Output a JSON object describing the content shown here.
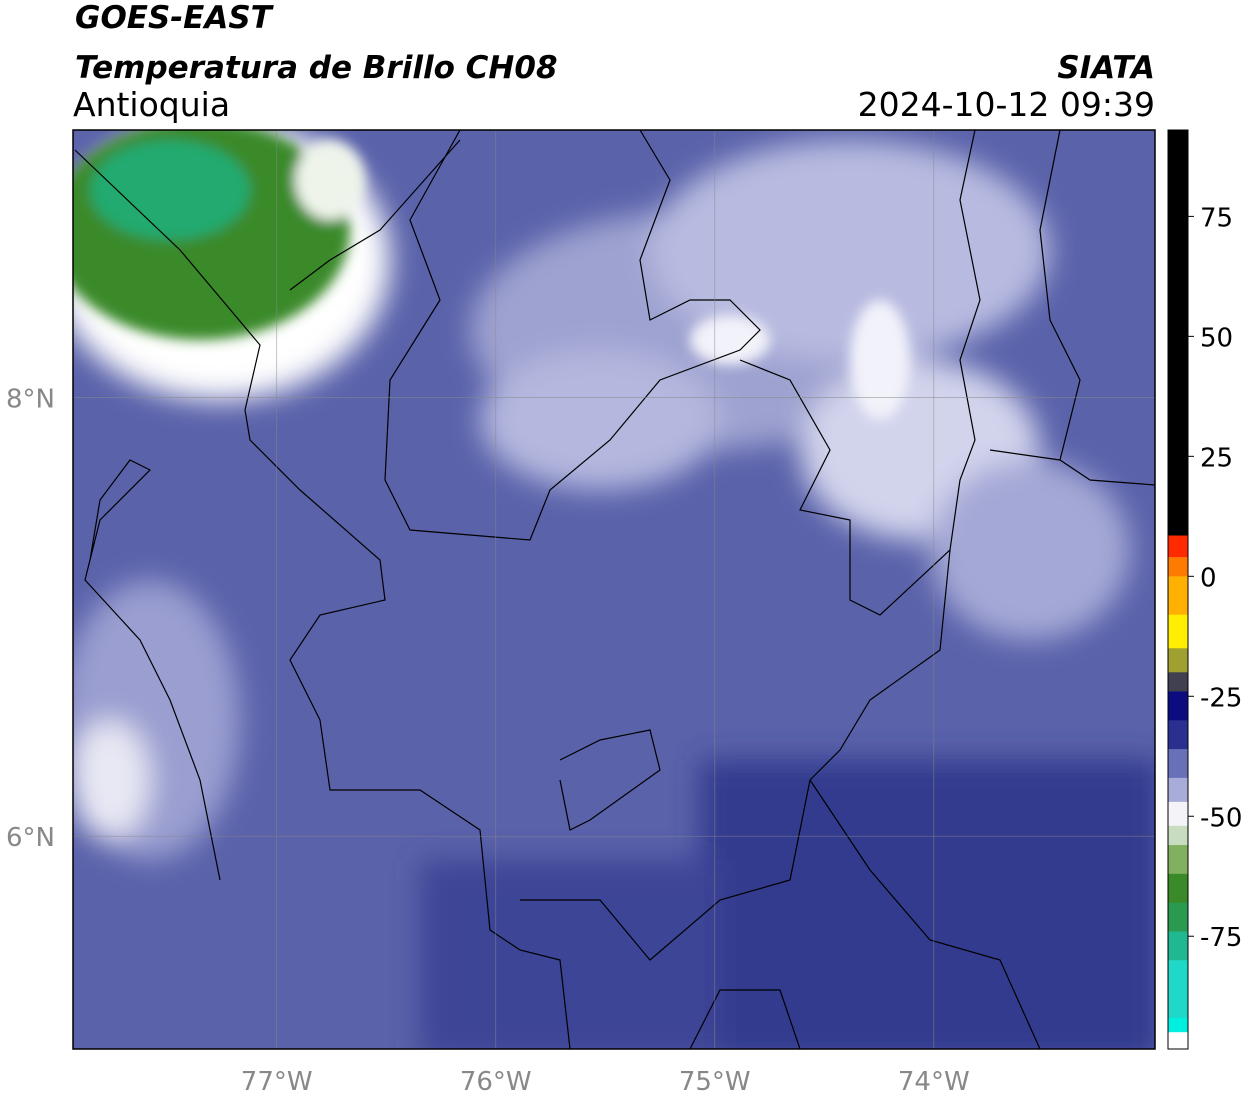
{
  "header": {
    "title": "GOES-EAST",
    "subtitle": "Temperatura de Brillo CH08",
    "region": "Antioquia",
    "source": "SIATA",
    "timestamp": "2024-10-12 09:39"
  },
  "map": {
    "lonlim": [
      -77.93,
      -72.99
    ],
    "latlim": [
      5.03,
      9.22
    ],
    "lon_ticks": [
      {
        "value": -77,
        "label": "77°W"
      },
      {
        "value": -76,
        "label": "76°W"
      },
      {
        "value": -75,
        "label": "75°W"
      },
      {
        "value": -74,
        "label": "74°W"
      }
    ],
    "lat_ticks": [
      {
        "value": 8,
        "label": "8°N"
      },
      {
        "value": 6,
        "label": "6°N"
      }
    ]
  },
  "colorbar": {
    "lim": [
      -98.5,
      93
    ],
    "ticks": [
      75,
      50,
      25,
      0,
      -25,
      -50,
      -75
    ],
    "segments": [
      {
        "from": 8.5,
        "to": 93,
        "color": "#000000"
      },
      {
        "from": 4,
        "to": 8.5,
        "color": "#ff2a00"
      },
      {
        "from": 0,
        "to": 4,
        "color": "#ff7a00"
      },
      {
        "from": -8,
        "to": 0,
        "color": "#ffb000"
      },
      {
        "from": -15,
        "to": -8,
        "color": "#ffee00"
      },
      {
        "from": -20,
        "to": -15,
        "color": "#a0a030"
      },
      {
        "from": -24,
        "to": -20,
        "color": "#404050"
      },
      {
        "from": -30,
        "to": -24,
        "color": "#0c0c80"
      },
      {
        "from": -36,
        "to": -30,
        "color": "#2a3090"
      },
      {
        "from": -42,
        "to": -36,
        "color": "#6870b8"
      },
      {
        "from": -47,
        "to": -42,
        "color": "#a8acd8"
      },
      {
        "from": -52,
        "to": -47,
        "color": "#f4f4f8"
      },
      {
        "from": -56,
        "to": -52,
        "color": "#c8dcc0"
      },
      {
        "from": -62,
        "to": -56,
        "color": "#80b060"
      },
      {
        "from": -68,
        "to": -62,
        "color": "#3a8a2a"
      },
      {
        "from": -74,
        "to": -68,
        "color": "#2a9a50"
      },
      {
        "from": -80,
        "to": -74,
        "color": "#20b890"
      },
      {
        "from": -92,
        "to": -80,
        "color": "#20d8c8"
      },
      {
        "from": -95,
        "to": -92,
        "color": "#00f0e0"
      },
      {
        "from": -98.5,
        "to": -95,
        "color": "#ffffff"
      }
    ]
  }
}
